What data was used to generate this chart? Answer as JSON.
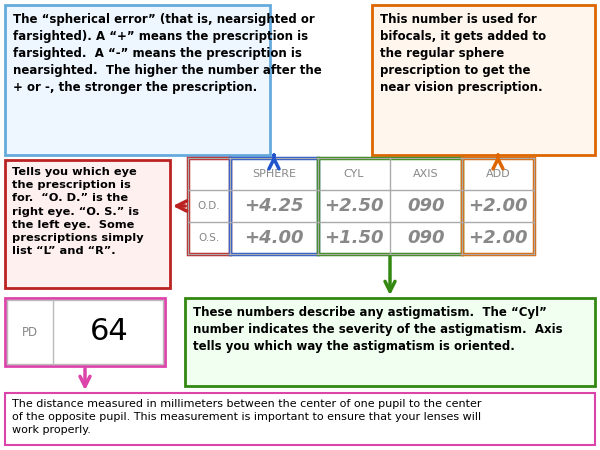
{
  "bg_color": "#ffffff",
  "sphere_text_top": "The “spherical error” (that is, nearsighted or\nfarsighted). A “+” means the prescription is\nfarsighted.  A “-” means the prescription is\nnearsighted.  The higher the number after the\n+ or -, the stronger the prescription.",
  "add_text_top": "This number is used for\nbifocals, it gets added to\nthe regular sphere\nprescription to get the\nnear vision prescription.",
  "left_text": "Tells you which eye\nthe prescription is\nfor.  “O. D.” is the\nright eye. “O. S.” is\nthe left eye.  Some\nprescriptions simply\nlist “L” and “R”.",
  "astig_text": "These numbers describe any astigmatism.  The “Cyl”\nnumber indicates the severity of the astigmatism.  Axis\ntells you which way the astigmatism is oriented.",
  "pd_text_bottom": "The distance measured in millimeters between the center of one pupil to the center\nof the opposite pupil. This measurement is important to ensure that your lenses will\nwork properly.",
  "sphere_box_color": "#2255cc",
  "add_box_color": "#dd6600",
  "left_box_color": "#bb2222",
  "astig_box_color": "#338811",
  "pd_box_color": "#dd44aa",
  "top_left_box_color": "#66aadd",
  "top_right_box_color": "#dd6600",
  "bottom_box_color": "#dd44aa",
  "headers": [
    "SPHERE",
    "CYL",
    "AXIS",
    "ADD"
  ],
  "row_labels": [
    "O.D.",
    "O.S."
  ],
  "row1_values": [
    "+4.25",
    "+2.50",
    "090",
    "+2.00"
  ],
  "row2_values": [
    "+4.00",
    "+1.50",
    "090",
    "+2.00"
  ]
}
